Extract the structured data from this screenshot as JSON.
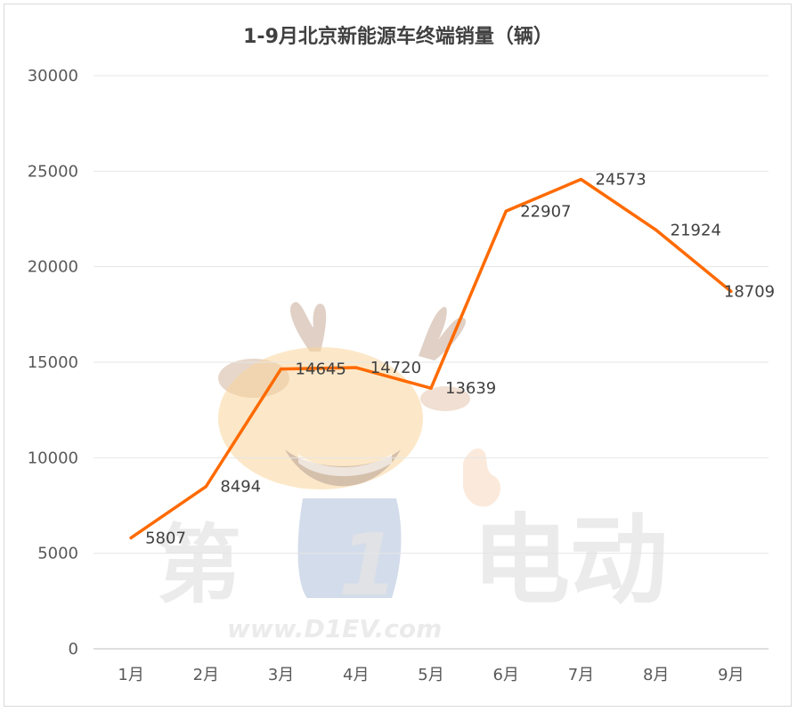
{
  "chart_data": {
    "type": "line",
    "title": "1-9月北京新能源车终端销量（辆）",
    "xlabel": "",
    "ylabel": "",
    "categories": [
      "1月",
      "2月",
      "3月",
      "4月",
      "5月",
      "6月",
      "7月",
      "8月",
      "9月"
    ],
    "series": [
      {
        "values": [
          5807,
          8494,
          14645,
          14720,
          13639,
          22907,
          24573,
          21924,
          18709
        ]
      }
    ],
    "ylim": [
      0,
      30000
    ],
    "yticks": [
      0,
      5000,
      10000,
      15000,
      20000,
      25000,
      30000
    ],
    "grid": true,
    "legend": "none",
    "line_color": "#ff6a00",
    "grid_color": "#e6e6e6",
    "data_labels": true
  },
  "watermark": {
    "text_brand_1": "第",
    "text_brand_2": "1",
    "text_brand_3": "电动",
    "url": "www.D1EV.com",
    "icon": "cartoon-deer-mascot-icon"
  }
}
